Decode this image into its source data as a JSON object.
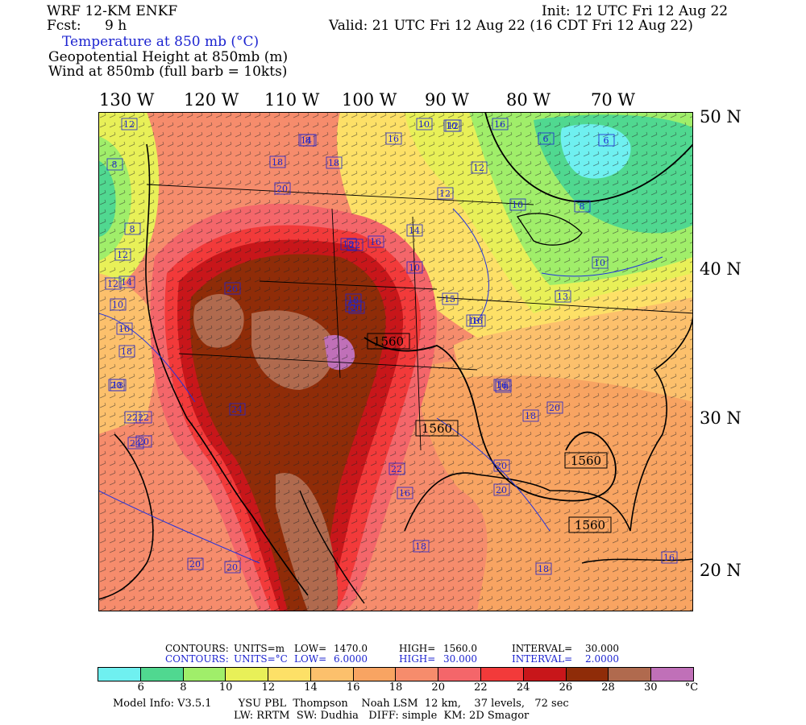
{
  "header": {
    "model": "WRF 12-KM ENKF",
    "fcst_label": "Fcst:",
    "fcst_value": "9 h",
    "init": "Init: 12 UTC Fri 12 Aug 22",
    "valid": "Valid: 21 UTC Fri 12 Aug 22 (16 CDT Fri 12 Aug 22)"
  },
  "fields": {
    "temperature": "Temperature at 850 mb (°C)",
    "height": "Geopotential Height at 850mb (m)",
    "wind": "Wind at 850mb (full barb = 10kts)"
  },
  "longitudes": [
    "130 W",
    "120 W",
    "110 W",
    "100 W",
    "90 W",
    "80 W",
    "70 W"
  ],
  "latitudes": [
    "50 N",
    "40 N",
    "30 N",
    "20 N"
  ],
  "map_labels": {
    "temperature": [
      "12",
      "14",
      "16",
      "12",
      "10",
      "10",
      "6",
      "6",
      "8",
      "18",
      "18",
      "16",
      "12",
      "12",
      "10",
      "20",
      "8",
      "8",
      "10",
      "12",
      "14",
      "18",
      "22",
      "26",
      "16",
      "14",
      "10",
      "8",
      "12",
      "16",
      "24",
      "20",
      "18",
      "26",
      "18",
      "15",
      "13",
      "10",
      "16",
      "16",
      "18",
      "20",
      "18",
      "20",
      "22",
      "20",
      "22",
      "22",
      "24",
      "20",
      "20",
      "16",
      "18",
      "18",
      "16",
      "20",
      "20",
      "16",
      "18",
      "16"
    ],
    "height": [
      "1560",
      "1560",
      "1560",
      "1560"
    ]
  },
  "contour_info": {
    "h_label": "CONTOURS:",
    "h_units": "UNITS=m",
    "h_low_label": "LOW=",
    "h_low": "1470.0",
    "h_high_label": "HIGH=",
    "h_high": "1560.0",
    "h_int_label": "INTERVAL=",
    "h_int": "30.000",
    "t_label": "CONTOURS:",
    "t_units": "UNITS=°C",
    "t_low_label": "LOW=",
    "t_low": "6.0000",
    "t_high_label": "HIGH=",
    "t_high": "30.000",
    "t_int_label": "INTERVAL=",
    "t_int": "2.0000"
  },
  "colorbar": {
    "colors": [
      "#6ff0f0",
      "#50d890",
      "#a0ee6a",
      "#e8f058",
      "#fde067",
      "#fcc06c",
      "#f8a462",
      "#f68c6c",
      "#f4666a",
      "#f23a3a",
      "#c8161a",
      "#8f2c08",
      "#b06a4e",
      "#c070b8"
    ],
    "ticks": [
      "6",
      "8",
      "10",
      "12",
      "14",
      "16",
      "18",
      "20",
      "22",
      "24",
      "26",
      "28",
      "30"
    ],
    "unit": "°C"
  },
  "model_info": {
    "line1": "Model Info: V3.5.1        YSU PBL  Thompson    Noah LSM  12 km,    37 levels,   72 sec",
    "line2": "LW: RRTM  SW: Dudhia   DIFF: simple  KM: 2D Smagor"
  }
}
